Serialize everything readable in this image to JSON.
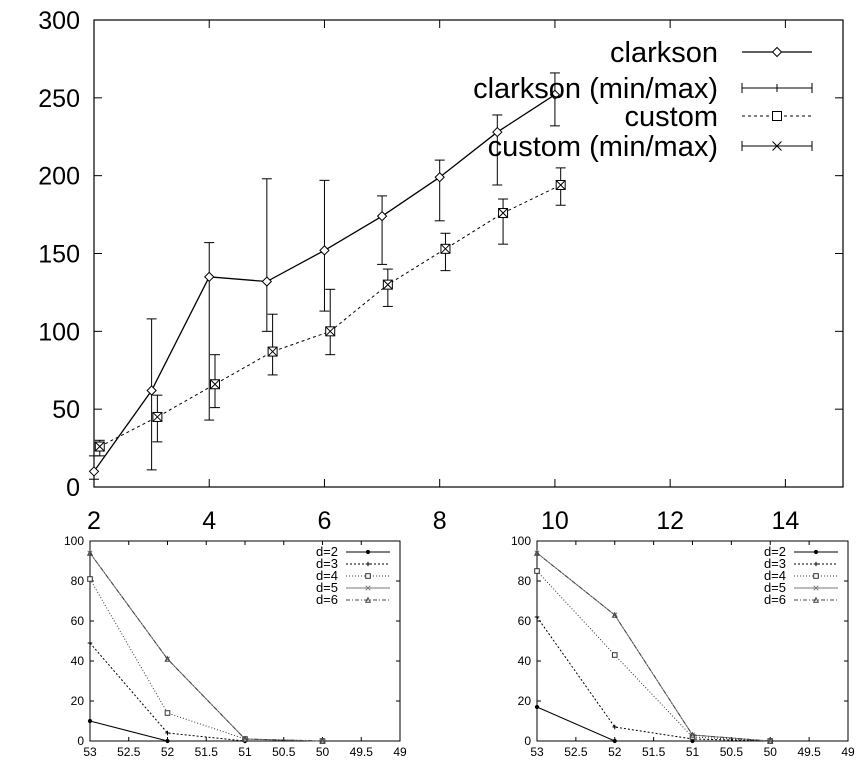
{
  "chart_data": [
    {
      "type": "line",
      "title": "",
      "xlabel": "",
      "ylabel": "",
      "xlim": [
        2,
        15
      ],
      "ylim": [
        0,
        300
      ],
      "xticks": [
        2,
        4,
        6,
        8,
        10,
        12,
        14
      ],
      "yticks": [
        0,
        50,
        100,
        150,
        200,
        250,
        300
      ],
      "grid": false,
      "legend_position": "top-right",
      "series": [
        {
          "name": "clarkson",
          "marker": "diamond",
          "dash": "solid",
          "x": [
            2,
            3,
            4,
            5,
            6,
            7,
            8,
            9,
            10
          ],
          "y": [
            10,
            62,
            135,
            132,
            152,
            174,
            199,
            228,
            252
          ]
        },
        {
          "name": "clarkson (min/max)",
          "errorbars": true,
          "x": [
            2,
            3,
            4,
            5,
            6,
            7,
            8,
            9,
            10
          ],
          "min": [
            5,
            11,
            43,
            100,
            113,
            143,
            171,
            194,
            232
          ],
          "max": [
            20,
            108,
            157,
            198,
            197,
            187,
            210,
            239,
            266
          ]
        },
        {
          "name": "custom",
          "marker": "square",
          "dash": "dotted",
          "x": [
            2.1,
            3.1,
            4.1,
            5.1,
            6.1,
            7.1,
            8.1,
            9.1,
            10.1
          ],
          "y": [
            26,
            45,
            66,
            87,
            100,
            130,
            153,
            176,
            194
          ]
        },
        {
          "name": "custom (min/max)",
          "marker": "x",
          "errorbars": true,
          "x": [
            2.1,
            3.1,
            4.1,
            5.1,
            6.1,
            7.1,
            8.1,
            9.1,
            10.1
          ],
          "min": [
            20,
            29,
            51,
            72,
            85,
            116,
            139,
            156,
            181
          ],
          "max": [
            30,
            59,
            85,
            111,
            127,
            140,
            163,
            185,
            205
          ]
        }
      ]
    },
    {
      "type": "line",
      "title": "",
      "xlabel": "",
      "ylabel": "",
      "xlim": [
        53,
        49
      ],
      "ylim": [
        0,
        100
      ],
      "xticks": [
        53,
        52.5,
        52,
        51.5,
        51,
        50.5,
        50,
        49.5,
        49
      ],
      "yticks": [
        0,
        20,
        40,
        60,
        80,
        100
      ],
      "grid": false,
      "legend_position": "top-right",
      "series": [
        {
          "name": "d=2",
          "x": [
            53,
            52,
            51,
            50
          ],
          "y": [
            10,
            0,
            0,
            0
          ]
        },
        {
          "name": "d=3",
          "x": [
            53,
            52,
            51,
            50
          ],
          "y": [
            49,
            4,
            0,
            0
          ]
        },
        {
          "name": "d=4",
          "x": [
            53,
            52,
            51,
            50
          ],
          "y": [
            81,
            14,
            1,
            0
          ]
        },
        {
          "name": "d=5",
          "x": [
            53,
            52,
            51,
            50
          ],
          "y": [
            94,
            41,
            1,
            0
          ]
        },
        {
          "name": "d=6",
          "x": [
            53,
            52,
            51,
            50
          ],
          "y": [
            94,
            41,
            1,
            0
          ]
        }
      ]
    },
    {
      "type": "line",
      "title": "",
      "xlabel": "",
      "ylabel": "",
      "xlim": [
        53,
        49
      ],
      "ylim": [
        0,
        100
      ],
      "xticks": [
        53,
        52.5,
        52,
        51.5,
        51,
        50.5,
        50,
        49.5,
        49
      ],
      "yticks": [
        0,
        20,
        40,
        60,
        80,
        100
      ],
      "grid": false,
      "legend_position": "top-right",
      "series": [
        {
          "name": "d=2",
          "x": [
            53,
            52,
            51,
            50
          ],
          "y": [
            17,
            0,
            0,
            0
          ]
        },
        {
          "name": "d=3",
          "x": [
            53,
            52,
            51,
            50
          ],
          "y": [
            62,
            7,
            1,
            0
          ]
        },
        {
          "name": "d=4",
          "x": [
            53,
            52,
            51,
            50
          ],
          "y": [
            85,
            43,
            2,
            0
          ]
        },
        {
          "name": "d=5",
          "x": [
            53,
            52,
            51,
            50
          ],
          "y": [
            94,
            63,
            3,
            0
          ]
        },
        {
          "name": "d=6",
          "x": [
            53,
            52,
            51,
            50
          ],
          "y": [
            94,
            63,
            3,
            0
          ]
        }
      ]
    }
  ]
}
